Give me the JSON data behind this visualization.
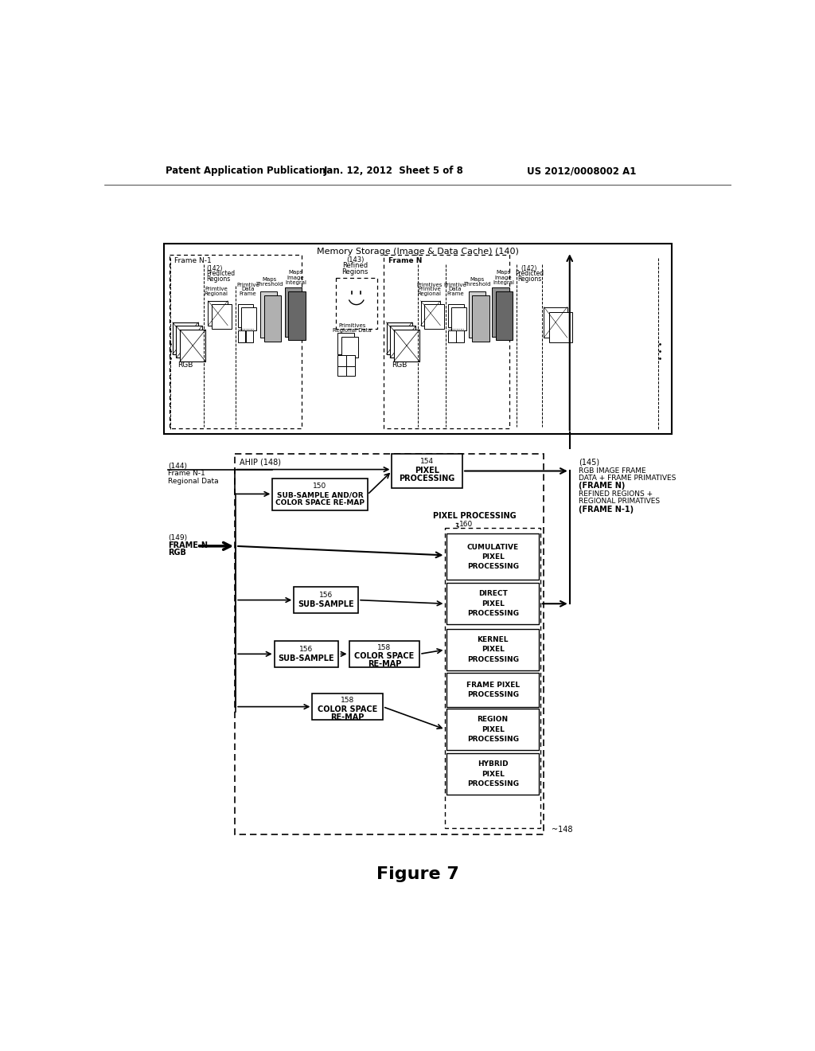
{
  "header_left": "Patent Application Publication",
  "header_center": "Jan. 12, 2012  Sheet 5 of 8",
  "header_right": "US 2012/0008002 A1",
  "figure_label": "Figure 7",
  "memory_box_label": "Memory Storage (Image & Data Cache) (140)",
  "background_color": "#ffffff",
  "line_color": "#000000"
}
